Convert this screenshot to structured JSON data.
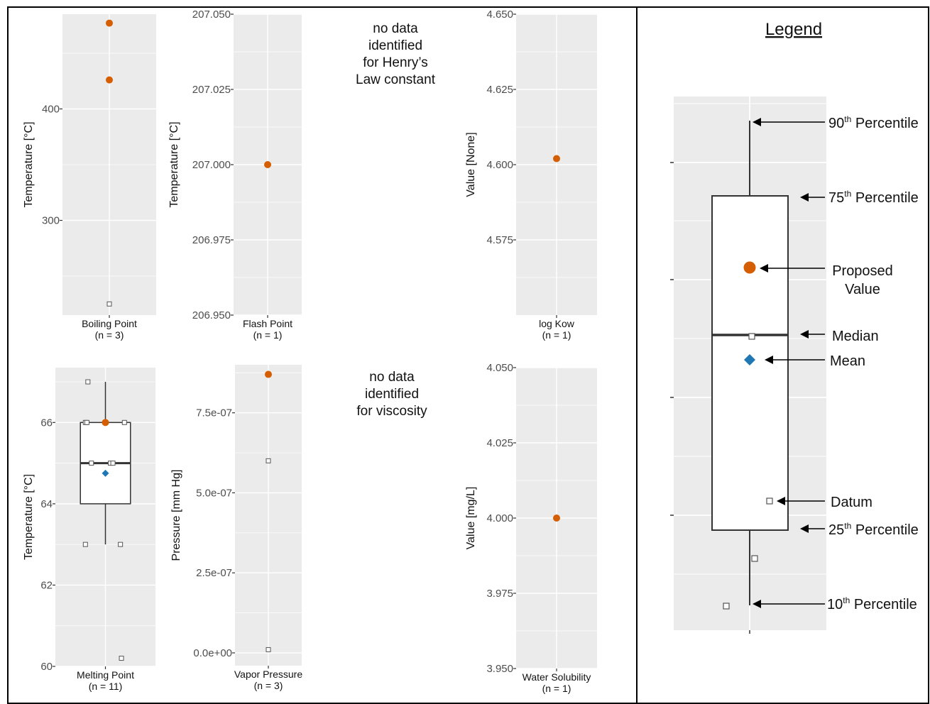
{
  "chart_data": [
    {
      "type": "box",
      "xlabel": "Boiling Point",
      "count_label": "(n = 3)",
      "ylabel": "Temperature [°C]",
      "yticks": [
        300,
        400
      ],
      "ytick_labels": [
        "300",
        "400"
      ],
      "ylim": [
        215,
        485
      ],
      "data_points": [
        {
          "x": 0,
          "y": 225
        }
      ],
      "proposed_values": [
        {
          "x": 0,
          "y": 477
        },
        {
          "x": 0,
          "y": 426
        }
      ]
    },
    {
      "type": "box",
      "xlabel": "Flash Point",
      "count_label": "(n = 1)",
      "ylabel": "Temperature [°C]",
      "yticks": [
        206.95,
        206.975,
        207.0,
        207.025,
        207.05
      ],
      "ytick_labels": [
        "206.950",
        "206.975",
        "207.000",
        "207.025",
        "207.050"
      ],
      "ylim": [
        206.95,
        207.05
      ],
      "data_points": [],
      "proposed_values": [
        {
          "x": 0,
          "y": 207.0
        }
      ]
    },
    {
      "type": "box",
      "xlabel": "log Kow",
      "count_label": "(n = 1)",
      "ylabel": "Value [None]",
      "yticks": [
        4.575,
        4.6,
        4.625,
        4.65
      ],
      "ytick_labels": [
        "4.575",
        "4.600",
        "4.625",
        "4.650"
      ],
      "ylim": [
        4.55,
        4.65
      ],
      "data_points": [],
      "proposed_values": [
        {
          "x": 0,
          "y": 4.602
        }
      ]
    },
    {
      "type": "box",
      "xlabel": "Melting Point",
      "count_label": "(n = 11)",
      "ylabel": "Temperature [°C]",
      "yticks": [
        60,
        62,
        64,
        66
      ],
      "ytick_labels": [
        "60",
        "62",
        "64",
        "66"
      ],
      "ylim": [
        60,
        67.35
      ],
      "box": {
        "q1": 64,
        "median": 65,
        "q3": 66,
        "whisker_low": 63,
        "whisker_high": 67,
        "mean": 64.75
      },
      "data_points": [
        {
          "x": -0.35,
          "y": 67
        },
        {
          "x": -0.4,
          "y": 66
        },
        {
          "x": -0.37,
          "y": 66
        },
        {
          "x": 0.38,
          "y": 66
        },
        {
          "x": -0.28,
          "y": 65
        },
        {
          "x": 0.1,
          "y": 65
        },
        {
          "x": 0.15,
          "y": 65
        },
        {
          "x": -0.4,
          "y": 63
        },
        {
          "x": 0.3,
          "y": 63
        },
        {
          "x": 0.32,
          "y": 60.2
        }
      ],
      "proposed_values": [
        {
          "x": 0,
          "y": 66
        }
      ]
    },
    {
      "type": "box",
      "xlabel": "Vapor Pressure",
      "count_label": "(n = 3)",
      "ylabel": "Pressure [mm Hg]",
      "yticks": [
        0,
        2.5e-07,
        5e-07,
        7.5e-07
      ],
      "ytick_labels": [
        "0.0e+00",
        "2.5e-07",
        "5.0e-07",
        "7.5e-07"
      ],
      "ylim": [
        -4e-08,
        9e-07
      ],
      "data_points": [
        {
          "x": 0,
          "y": 6e-07
        },
        {
          "x": 0,
          "y": 1e-08
        }
      ],
      "proposed_values": [
        {
          "x": 0,
          "y": 8.7e-07
        }
      ]
    },
    {
      "type": "box",
      "xlabel": "Water Solubility",
      "count_label": "(n = 1)",
      "ylabel": "Value [mg/L]",
      "yticks": [
        3.95,
        3.975,
        4.0,
        4.025,
        4.05
      ],
      "ytick_labels": [
        "3.950",
        "3.975",
        "4.000",
        "4.025",
        "4.050"
      ],
      "ylim": [
        3.95,
        4.05
      ],
      "data_points": [],
      "proposed_values": [
        {
          "x": 0,
          "y": 4.0
        }
      ]
    }
  ],
  "no_data_notes": [
    {
      "lines": [
        "no data",
        "identified",
        "for Henry’s",
        "Law constant"
      ]
    },
    {
      "lines": [
        "no data",
        "identified",
        "for viscosity"
      ]
    }
  ],
  "legend": {
    "title": "Legend",
    "items": {
      "p90": {
        "base": "90",
        "sup": "th",
        "rest": " Percentile"
      },
      "p75": {
        "base": "75",
        "sup": "th",
        "rest": " Percentile"
      },
      "proposed": {
        "lines": [
          "Proposed",
          "Value"
        ]
      },
      "median": {
        "text": "Median"
      },
      "mean": {
        "text": "Mean"
      },
      "datum": {
        "text": "Datum"
      },
      "p25": {
        "base": "25",
        "sup": "th",
        "rest": " Percentile"
      },
      "p10": {
        "base": "10",
        "sup": "th",
        "rest": " Percentile"
      }
    }
  },
  "colors": {
    "panel_bg": "#ebebeb",
    "grid": "#ffffff",
    "proposed": "#d55e00",
    "mean": "#1f78b4",
    "datum_stroke": "#555555",
    "box_stroke": "#333333",
    "axis_text": "#4d4d4d",
    "frame": "#000000"
  }
}
